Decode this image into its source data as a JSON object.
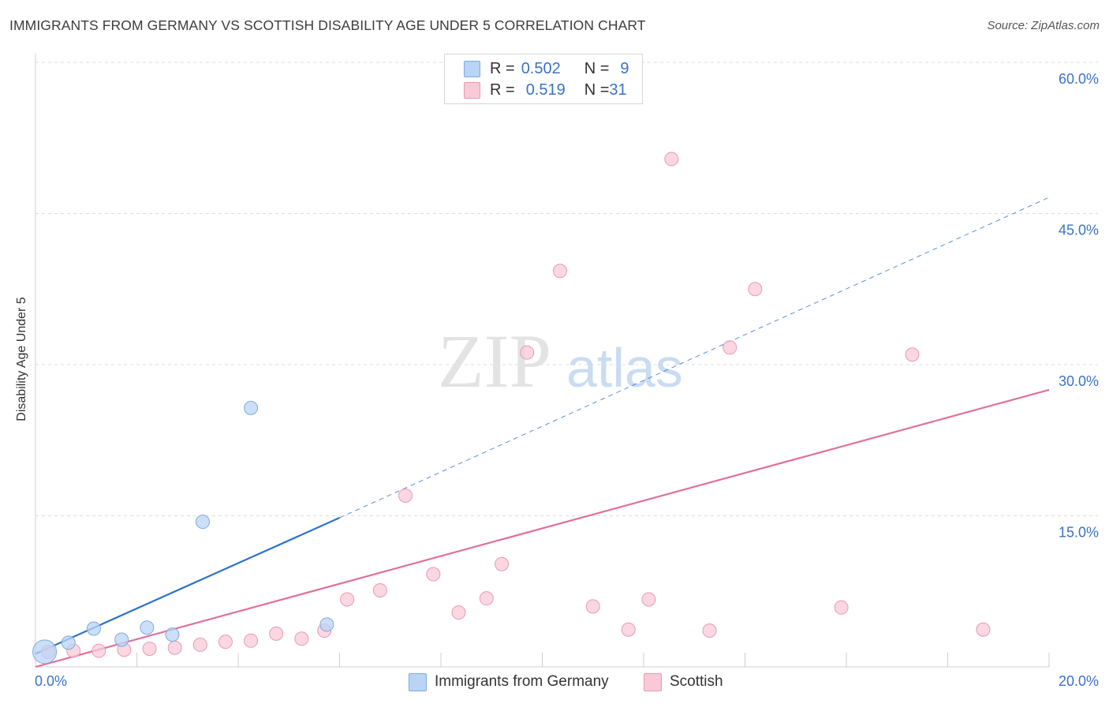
{
  "title": "IMMIGRANTS FROM GERMANY VS SCOTTISH DISABILITY AGE UNDER 5 CORRELATION CHART",
  "source": "Source: ZipAtlas.com",
  "watermark": {
    "zip": "ZIP",
    "atlas": "atlas"
  },
  "legend": {
    "rows": [
      {
        "r_label": "R = ",
        "r_value": "0.502",
        "n_label": "N = ",
        "n_value": "9"
      },
      {
        "r_label": "R = ",
        "r_value": "0.519",
        "n_label": "N = ",
        "n_value": "31"
      }
    ]
  },
  "bottom_legend": {
    "items": [
      {
        "label": "Immigrants from Germany"
      },
      {
        "label": "Scottish"
      }
    ]
  },
  "colors": {
    "blue_fill": "#b9d4f5",
    "blue_stroke": "#7fa9de",
    "blue_line": "#2f72cc",
    "pink_fill": "#f9c9d8",
    "pink_stroke": "#e79ab3",
    "pink_line": "#e0709a",
    "tick_text": "#3a72c8",
    "grid": "#dcdcdc"
  },
  "chart_data": {
    "type": "scatter",
    "title": "IMMIGRANTS FROM GERMANY VS SCOTTISH DISABILITY AGE UNDER 5 CORRELATION CHART",
    "xlabel": "",
    "ylabel": "Disability Age Under 5",
    "xlim": [
      0,
      20
    ],
    "ylim": [
      0,
      60
    ],
    "x_tick_labels": [
      "0.0%",
      "20.0%"
    ],
    "y_ticks": [
      15,
      30,
      45,
      60
    ],
    "y_tick_labels": [
      "15.0%",
      "30.0%",
      "45.0%",
      "60.0%"
    ],
    "grid": true,
    "legend_position": "top-center",
    "series": [
      {
        "name": "Immigrants from Germany",
        "r": 0.502,
        "n": 9,
        "points": [
          {
            "x": 0.18,
            "y": 1.5,
            "big": true
          },
          {
            "x": 0.65,
            "y": 2.4
          },
          {
            "x": 1.15,
            "y": 3.8
          },
          {
            "x": 1.7,
            "y": 2.7
          },
          {
            "x": 2.2,
            "y": 3.9
          },
          {
            "x": 2.7,
            "y": 3.2
          },
          {
            "x": 3.3,
            "y": 14.4
          },
          {
            "x": 4.25,
            "y": 25.7
          },
          {
            "x": 5.75,
            "y": 4.2
          }
        ],
        "trend": {
          "x0": 0.0,
          "y0": 1.3,
          "x1": 6.0,
          "y1": 14.8,
          "dashed_to_x": 20.0,
          "dashed_to_y": 46.6
        }
      },
      {
        "name": "Scottish",
        "r": 0.519,
        "n": 31,
        "points": [
          {
            "x": 0.25,
            "y": 1.5
          },
          {
            "x": 0.75,
            "y": 1.6
          },
          {
            "x": 1.25,
            "y": 1.6
          },
          {
            "x": 1.75,
            "y": 1.7
          },
          {
            "x": 2.25,
            "y": 1.8
          },
          {
            "x": 2.75,
            "y": 1.9
          },
          {
            "x": 3.25,
            "y": 2.2
          },
          {
            "x": 3.75,
            "y": 2.5
          },
          {
            "x": 4.25,
            "y": 2.6
          },
          {
            "x": 4.75,
            "y": 3.3
          },
          {
            "x": 5.25,
            "y": 2.8
          },
          {
            "x": 5.7,
            "y": 3.6
          },
          {
            "x": 6.15,
            "y": 6.7
          },
          {
            "x": 6.8,
            "y": 7.6
          },
          {
            "x": 7.3,
            "y": 17.0
          },
          {
            "x": 7.85,
            "y": 9.2
          },
          {
            "x": 8.35,
            "y": 5.4
          },
          {
            "x": 8.9,
            "y": 6.8
          },
          {
            "x": 9.2,
            "y": 10.2
          },
          {
            "x": 9.7,
            "y": 31.2
          },
          {
            "x": 10.35,
            "y": 39.3
          },
          {
            "x": 11.0,
            "y": 6.0
          },
          {
            "x": 11.7,
            "y": 3.7
          },
          {
            "x": 12.1,
            "y": 6.7
          },
          {
            "x": 12.55,
            "y": 50.4
          },
          {
            "x": 13.3,
            "y": 3.6
          },
          {
            "x": 13.7,
            "y": 31.7
          },
          {
            "x": 14.2,
            "y": 37.5
          },
          {
            "x": 15.9,
            "y": 5.9
          },
          {
            "x": 17.3,
            "y": 31.0
          },
          {
            "x": 18.7,
            "y": 3.7
          }
        ],
        "trend": {
          "x0": 0.0,
          "y0": 0.0,
          "x1": 20.0,
          "y1": 27.5
        }
      }
    ]
  }
}
